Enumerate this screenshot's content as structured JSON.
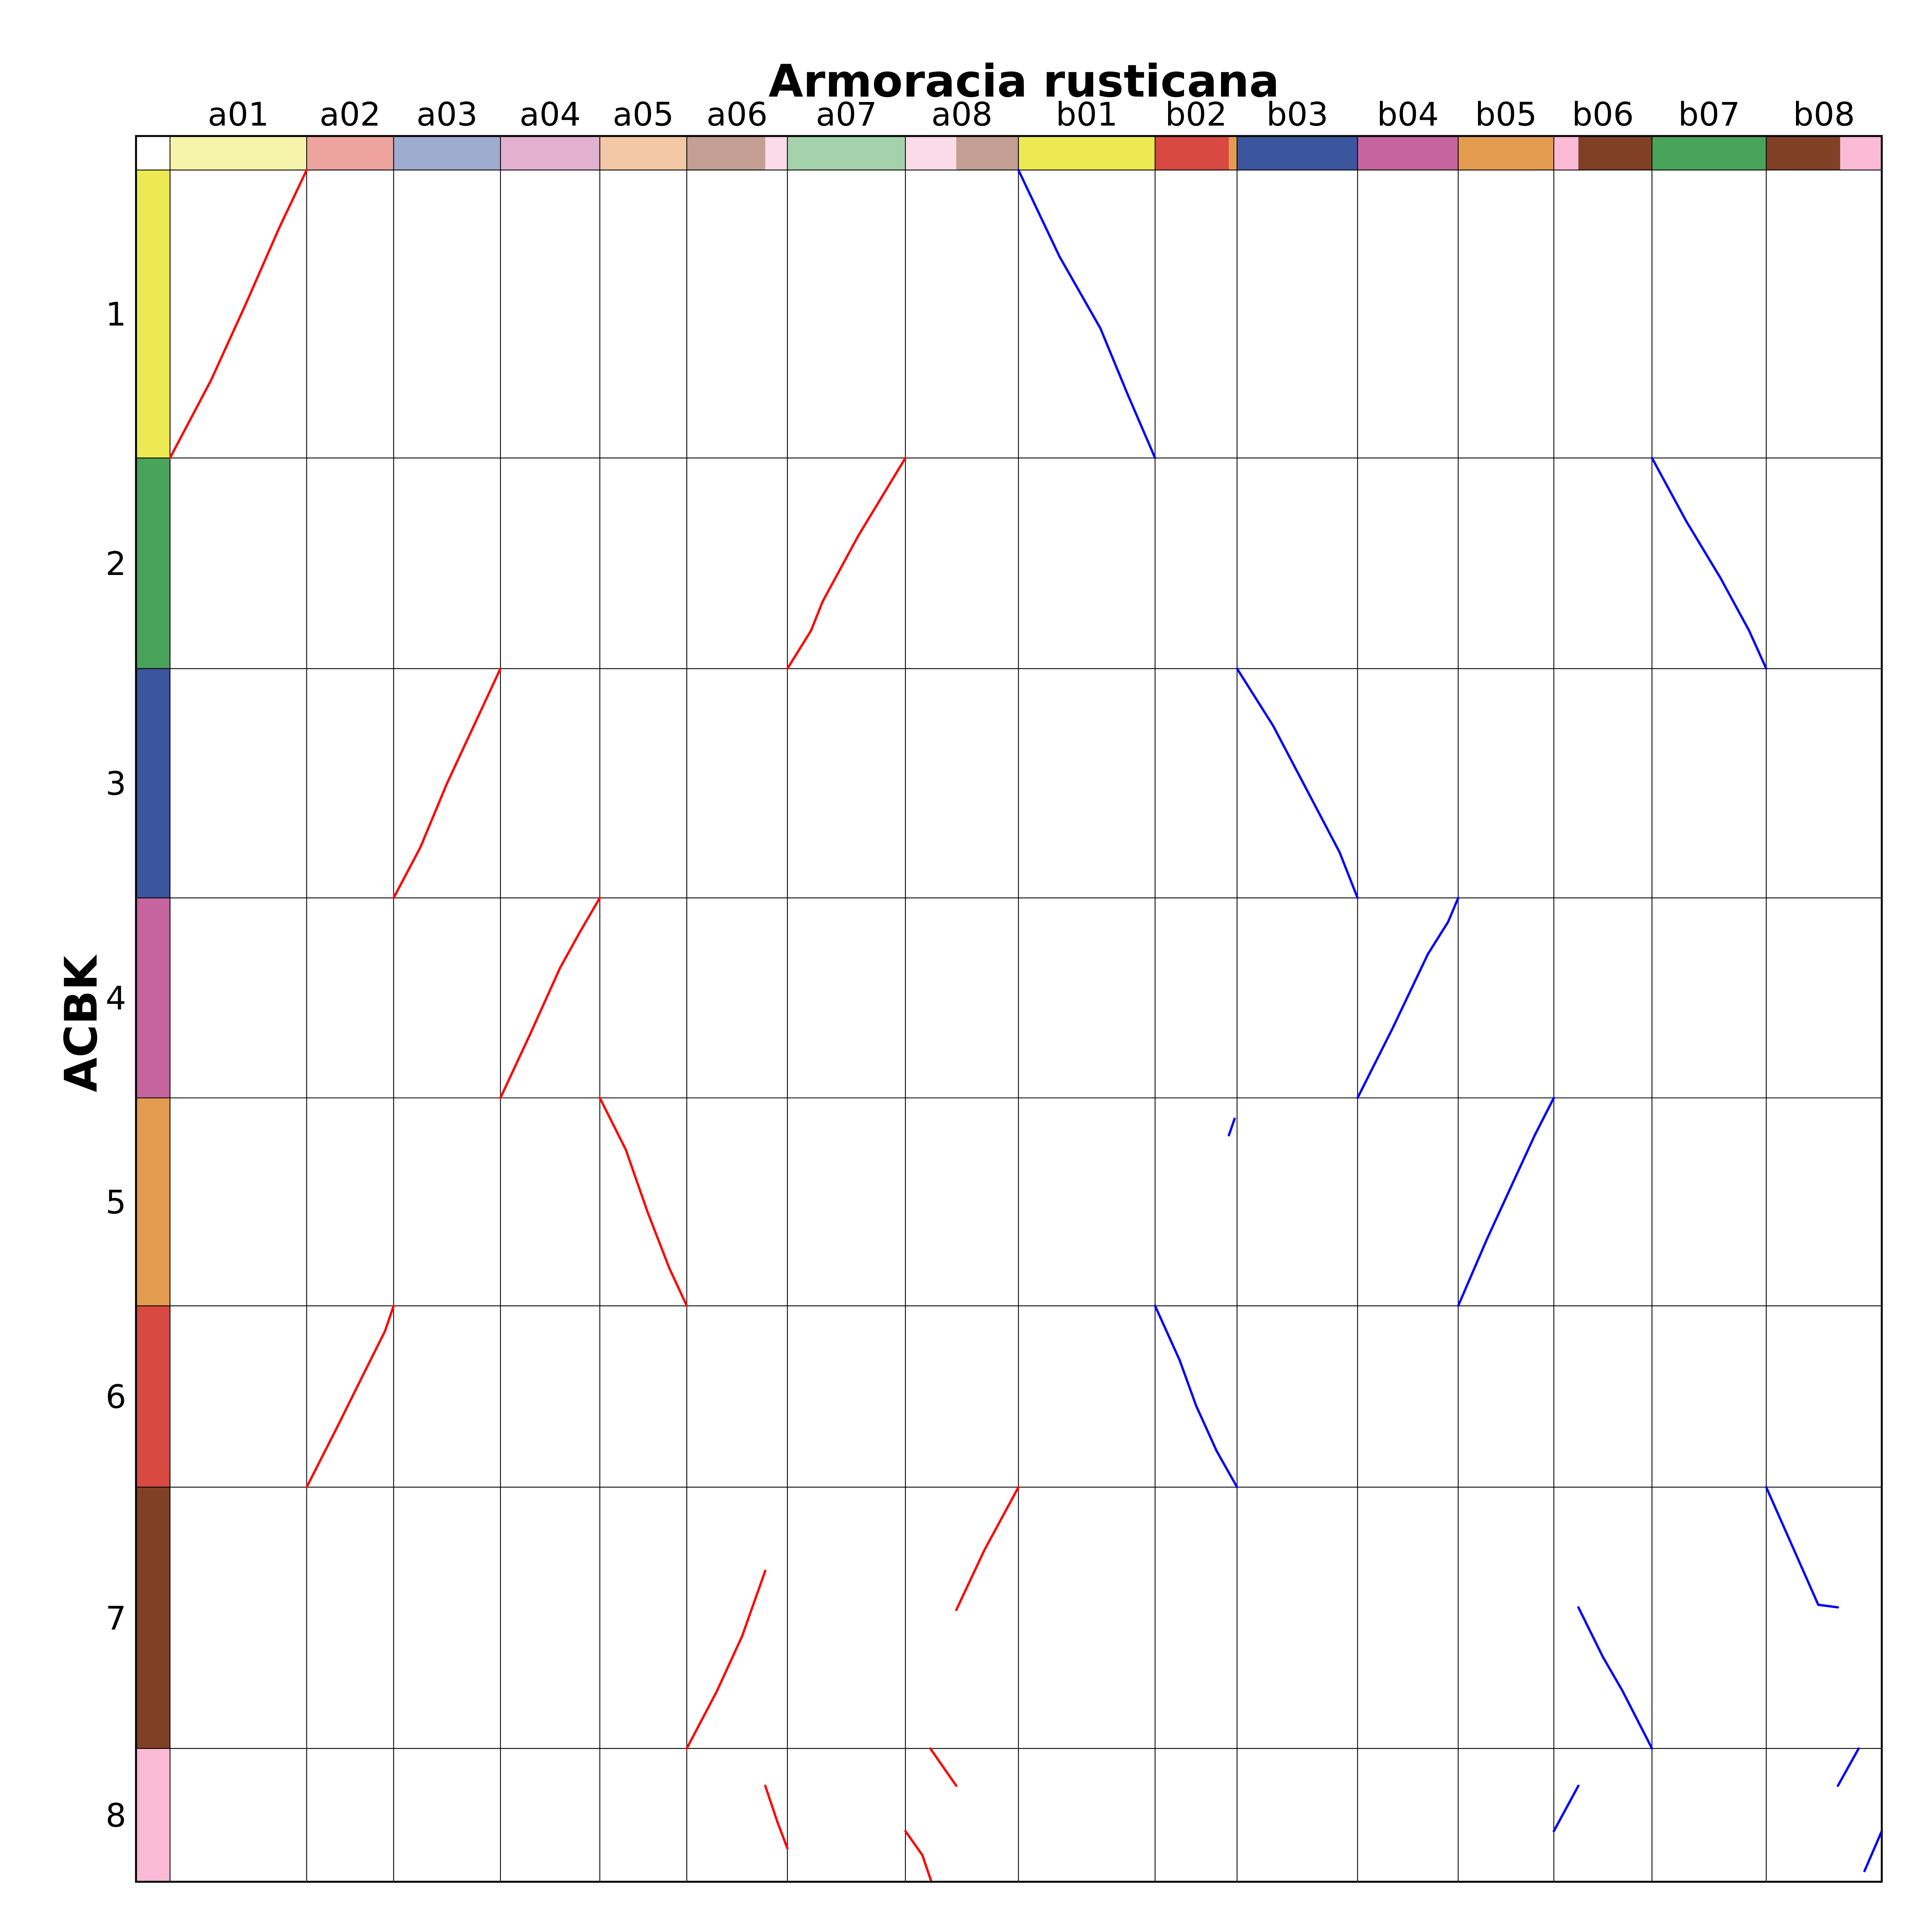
{
  "chart_data": {
    "type": "dotplot",
    "title": "Armoracia rusticana",
    "ylabel": "ACBK",
    "x_chromosomes": [
      {
        "name": "a01",
        "length": 11.0
      },
      {
        "name": "a02",
        "length": 7.0
      },
      {
        "name": "a03",
        "length": 8.6
      },
      {
        "name": "a04",
        "length": 8.0
      },
      {
        "name": "a05",
        "length": 7.0
      },
      {
        "name": "a06",
        "length": 8.1
      },
      {
        "name": "a07",
        "length": 9.5
      },
      {
        "name": "a08",
        "length": 9.1
      },
      {
        "name": "b01",
        "length": 11.0
      },
      {
        "name": "b02",
        "length": 6.6
      },
      {
        "name": "b03",
        "length": 9.7
      },
      {
        "name": "b04",
        "length": 8.1
      },
      {
        "name": "b05",
        "length": 7.7
      },
      {
        "name": "b06",
        "length": 7.9
      },
      {
        "name": "b07",
        "length": 9.2
      },
      {
        "name": "b08",
        "length": 9.3
      }
    ],
    "y_chromosomes": [
      {
        "name": "1",
        "length": 10.8
      },
      {
        "name": "2",
        "length": 7.9
      },
      {
        "name": "3",
        "length": 8.6
      },
      {
        "name": "4",
        "length": 7.5
      },
      {
        "name": "5",
        "length": 7.8
      },
      {
        "name": "6",
        "length": 6.8
      },
      {
        "name": "7",
        "length": 9.8
      },
      {
        "name": "8",
        "length": 5.0
      }
    ],
    "x_blocks": [
      {
        "chr": "a01",
        "segments": [
          {
            "from": 0.0,
            "to": 1.0,
            "color": "#f6f4aa"
          }
        ]
      },
      {
        "chr": "a02",
        "segments": [
          {
            "from": 0.0,
            "to": 1.0,
            "color": "#eda49e"
          }
        ]
      },
      {
        "chr": "a03",
        "segments": [
          {
            "from": 0.0,
            "to": 1.0,
            "color": "#9daccf"
          }
        ]
      },
      {
        "chr": "a04",
        "segments": [
          {
            "from": 0.0,
            "to": 1.0,
            "color": "#e2b1cf"
          }
        ]
      },
      {
        "chr": "a05",
        "segments": [
          {
            "from": 0.0,
            "to": 1.0,
            "color": "#f2c8a5"
          }
        ]
      },
      {
        "chr": "a06",
        "segments": [
          {
            "from": 0.0,
            "to": 0.78,
            "color": "#c39e92"
          },
          {
            "from": 0.78,
            "to": 1.0,
            "color": "#fcdbe8"
          }
        ]
      },
      {
        "chr": "a07",
        "segments": [
          {
            "from": 0.0,
            "to": 1.0,
            "color": "#a4d2aa"
          }
        ]
      },
      {
        "chr": "a08",
        "segments": [
          {
            "from": 0.0,
            "to": 0.45,
            "color": "#fcdbe8"
          },
          {
            "from": 0.45,
            "to": 1.0,
            "color": "#c39e92"
          }
        ]
      },
      {
        "chr": "b01",
        "segments": [
          {
            "from": 0.0,
            "to": 1.0,
            "color": "#ede953"
          }
        ]
      },
      {
        "chr": "b02",
        "segments": [
          {
            "from": 0.0,
            "to": 0.9,
            "color": "#d84941"
          },
          {
            "from": 0.9,
            "to": 1.0,
            "color": "#e39b50"
          }
        ]
      },
      {
        "chr": "b03",
        "segments": [
          {
            "from": 0.0,
            "to": 1.0,
            "color": "#3b559e"
          }
        ]
      },
      {
        "chr": "b04",
        "segments": [
          {
            "from": 0.0,
            "to": 1.0,
            "color": "#c5649f"
          }
        ]
      },
      {
        "chr": "b05",
        "segments": [
          {
            "from": 0.0,
            "to": 1.0,
            "color": "#e39b50"
          }
        ]
      },
      {
        "chr": "b06",
        "segments": [
          {
            "from": 0.0,
            "to": 0.25,
            "color": "#fbbbd7"
          },
          {
            "from": 0.25,
            "to": 1.0,
            "color": "#804026"
          }
        ]
      },
      {
        "chr": "b07",
        "segments": [
          {
            "from": 0.0,
            "to": 1.0,
            "color": "#4aa35b"
          }
        ]
      },
      {
        "chr": "b08",
        "segments": [
          {
            "from": 0.0,
            "to": 0.64,
            "color": "#804026"
          },
          {
            "from": 0.64,
            "to": 1.0,
            "color": "#fbbbd7"
          }
        ]
      }
    ],
    "y_colors": [
      "#ede953",
      "#4aa35b",
      "#3b559e",
      "#c5649f",
      "#e39b50",
      "#d84941",
      "#804026",
      "#fbbbd7"
    ],
    "synteny_color_a": "#ff0000",
    "synteny_color_b": "#0000ff",
    "synteny_segments": [
      {
        "xchr": "a01",
        "ychr": "1",
        "points": [
          [
            0.0,
            1.0
          ],
          [
            0.3,
            0.73
          ],
          [
            0.55,
            0.47
          ],
          [
            0.8,
            0.2
          ],
          [
            1.0,
            0.0
          ]
        ]
      },
      {
        "xchr": "a02",
        "ychr": "6",
        "points": [
          [
            0.0,
            1.0
          ],
          [
            0.35,
            0.67
          ],
          [
            0.65,
            0.38
          ],
          [
            0.9,
            0.14
          ],
          [
            1.0,
            0.0
          ]
        ]
      },
      {
        "xchr": "a03",
        "ychr": "3",
        "points": [
          [
            0.0,
            1.0
          ],
          [
            0.25,
            0.78
          ],
          [
            0.5,
            0.5
          ],
          [
            0.75,
            0.25
          ],
          [
            1.0,
            0.0
          ]
        ]
      },
      {
        "xchr": "a04",
        "ychr": "4",
        "points": [
          [
            0.0,
            1.0
          ],
          [
            0.3,
            0.68
          ],
          [
            0.6,
            0.35
          ],
          [
            0.8,
            0.17
          ],
          [
            1.0,
            0.0
          ]
        ]
      },
      {
        "xchr": "a05",
        "ychr": "5",
        "points": [
          [
            0.0,
            0.0
          ],
          [
            0.3,
            0.25
          ],
          [
            0.55,
            0.55
          ],
          [
            0.8,
            0.82
          ],
          [
            1.0,
            1.0
          ]
        ]
      },
      {
        "xchr": "a06",
        "ychr": "7",
        "points": [
          [
            0.0,
            1.0
          ],
          [
            0.3,
            0.78
          ],
          [
            0.55,
            0.57
          ],
          [
            0.78,
            0.32
          ]
        ]
      },
      {
        "xchr": "a06",
        "ychr": "8",
        "points": [
          [
            0.78,
            0.28
          ],
          [
            0.9,
            0.55
          ],
          [
            1.0,
            0.75
          ]
        ]
      },
      {
        "xchr": "a07",
        "ychr": "2",
        "points": [
          [
            0.0,
            1.0
          ],
          [
            0.2,
            0.82
          ],
          [
            0.3,
            0.68
          ],
          [
            0.6,
            0.37
          ],
          [
            1.0,
            0.0
          ]
        ]
      },
      {
        "xchr": "a08",
        "ychr": "7",
        "points": [
          [
            0.45,
            0.47
          ],
          [
            0.7,
            0.24
          ],
          [
            1.0,
            0.0
          ]
        ]
      },
      {
        "xchr": "a08",
        "ychr": "8",
        "points": [
          [
            0.22,
            0.0
          ],
          [
            0.45,
            0.28
          ]
        ]
      },
      {
        "xchr": "a08",
        "ychr": "8",
        "points": [
          [
            0.0,
            0.62
          ],
          [
            0.15,
            0.8
          ],
          [
            0.23,
            1.0
          ]
        ]
      },
      {
        "xchr": "b01",
        "ychr": "1",
        "points": [
          [
            0.0,
            0.0
          ],
          [
            0.3,
            0.3
          ],
          [
            0.6,
            0.55
          ],
          [
            0.8,
            0.78
          ],
          [
            1.0,
            1.0
          ]
        ]
      },
      {
        "xchr": "b02",
        "ychr": "6",
        "points": [
          [
            0.0,
            0.0
          ],
          [
            0.3,
            0.3
          ],
          [
            0.5,
            0.55
          ],
          [
            0.75,
            0.8
          ],
          [
            1.0,
            1.0
          ]
        ]
      },
      {
        "xchr": "b02",
        "ychr": "5",
        "points": [
          [
            0.9,
            0.18
          ],
          [
            0.97,
            0.1
          ]
        ]
      },
      {
        "xchr": "b03",
        "ychr": "3",
        "points": [
          [
            0.0,
            0.0
          ],
          [
            0.3,
            0.25
          ],
          [
            0.6,
            0.55
          ],
          [
            0.85,
            0.8
          ],
          [
            1.0,
            1.0
          ]
        ]
      },
      {
        "xchr": "b04",
        "ychr": "4",
        "points": [
          [
            0.0,
            1.0
          ],
          [
            0.35,
            0.65
          ],
          [
            0.7,
            0.28
          ],
          [
            0.9,
            0.12
          ],
          [
            1.0,
            0.0
          ]
        ]
      },
      {
        "xchr": "b05",
        "ychr": "5",
        "points": [
          [
            0.0,
            1.0
          ],
          [
            0.3,
            0.68
          ],
          [
            0.6,
            0.38
          ],
          [
            0.8,
            0.18
          ],
          [
            1.0,
            0.0
          ]
        ]
      },
      {
        "xchr": "b06",
        "ychr": "7",
        "points": [
          [
            0.25,
            0.46
          ],
          [
            0.5,
            0.65
          ],
          [
            0.7,
            0.78
          ],
          [
            1.0,
            1.0
          ]
        ]
      },
      {
        "xchr": "b06",
        "ychr": "8",
        "points": [
          [
            0.0,
            0.62
          ],
          [
            0.25,
            0.28
          ]
        ]
      },
      {
        "xchr": "b07",
        "ychr": "2",
        "points": [
          [
            0.0,
            0.0
          ],
          [
            0.3,
            0.3
          ],
          [
            0.6,
            0.57
          ],
          [
            0.85,
            0.82
          ],
          [
            1.0,
            1.0
          ]
        ]
      },
      {
        "xchr": "b08",
        "ychr": "7",
        "points": [
          [
            0.0,
            0.0
          ],
          [
            0.25,
            0.25
          ],
          [
            0.45,
            0.45
          ],
          [
            0.62,
            0.46
          ]
        ]
      },
      {
        "xchr": "b08",
        "ychr": "8",
        "points": [
          [
            0.62,
            0.28
          ],
          [
            0.8,
            0.0
          ]
        ]
      },
      {
        "xchr": "b08",
        "ychr": "8",
        "points": [
          [
            0.85,
            0.92
          ],
          [
            1.0,
            0.62
          ]
        ]
      }
    ]
  }
}
